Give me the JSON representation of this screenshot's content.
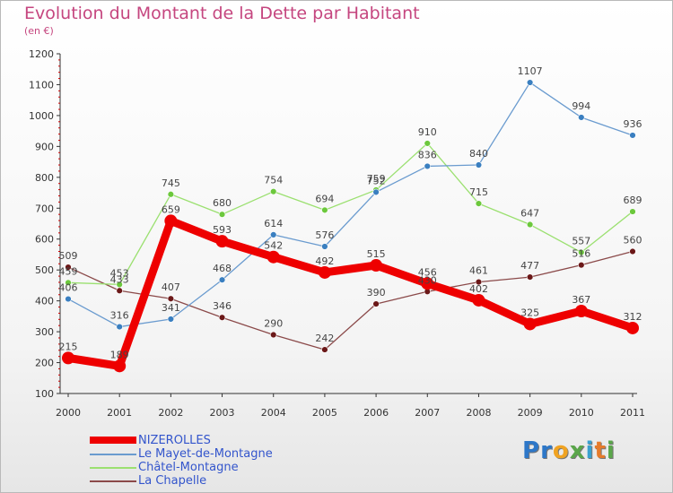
{
  "header": {
    "title": "Evolution du Montant de la Dette par Habitant",
    "subtitle": "(en €)"
  },
  "logo": {
    "text": "Proxiti",
    "letters": [
      {
        "ch": "P",
        "color": "#2d77c8"
      },
      {
        "ch": "r",
        "color": "#2d77c8"
      },
      {
        "ch": "o",
        "color": "#f0a322"
      },
      {
        "ch": "x",
        "color": "#5aa64a"
      },
      {
        "ch": "i",
        "color": "#3aa0d0"
      },
      {
        "ch": "t",
        "color": "#e57b2b"
      },
      {
        "ch": "i",
        "color": "#5aa64a"
      }
    ]
  },
  "chart_data": {
    "type": "line",
    "title": "Evolution du Montant de la Dette par Habitant",
    "subtitle": "(en €)",
    "xlabel": "",
    "ylabel": "",
    "x": [
      "2000",
      "2001",
      "2002",
      "2003",
      "2004",
      "2005",
      "2006",
      "2007",
      "2008",
      "2009",
      "2010",
      "2011"
    ],
    "ylim": [
      100,
      1200
    ],
    "yticks": [
      "100",
      "200",
      "300",
      "400",
      "500",
      "600",
      "700",
      "800",
      "900",
      "1000",
      "1100",
      "1200"
    ],
    "grid": false,
    "legend": "bottom-left",
    "series": [
      {
        "name": "NIZEROLLES",
        "color": "#ee0000",
        "dot": "#ee0000",
        "width": "thick",
        "values": [
          215,
          189,
          659,
          593,
          542,
          492,
          515,
          456,
          402,
          325,
          367,
          312
        ],
        "labels": [
          "215",
          "189",
          "659",
          "593",
          "542",
          "492",
          "515",
          "456",
          "402",
          "325",
          "367",
          "312"
        ]
      },
      {
        "name": "Le Mayet-de-Montagne",
        "color": "#6a9bcf",
        "dot": "#3a7fc0",
        "width": "thin",
        "values": [
          406,
          316,
          341,
          468,
          614,
          576,
          752,
          836,
          840,
          1107,
          994,
          936
        ],
        "labels": [
          "406",
          "316",
          "341",
          "468",
          "614",
          "576",
          "752",
          "836",
          "840",
          "1107",
          "994",
          "936"
        ]
      },
      {
        "name": "Châtel-Montagne",
        "color": "#9be070",
        "dot": "#6cc83c",
        "width": "thin",
        "values": [
          459,
          453,
          745,
          680,
          754,
          694,
          759,
          910,
          715,
          647,
          557,
          689
        ],
        "labels": [
          "459",
          "453",
          "745",
          "680",
          "754",
          "694",
          "759",
          "910",
          "715",
          "647",
          "557",
          "689"
        ]
      },
      {
        "name": "La Chapelle",
        "color": "#8b4a4a",
        "dot": "#6b1818",
        "width": "thin",
        "values": [
          509,
          433,
          407,
          346,
          290,
          242,
          390,
          430,
          461,
          477,
          516,
          560
        ],
        "labels": [
          "509",
          "433",
          "407",
          "346",
          "290",
          "242",
          "390",
          "430",
          "461",
          "477",
          "516",
          "560"
        ]
      }
    ]
  }
}
